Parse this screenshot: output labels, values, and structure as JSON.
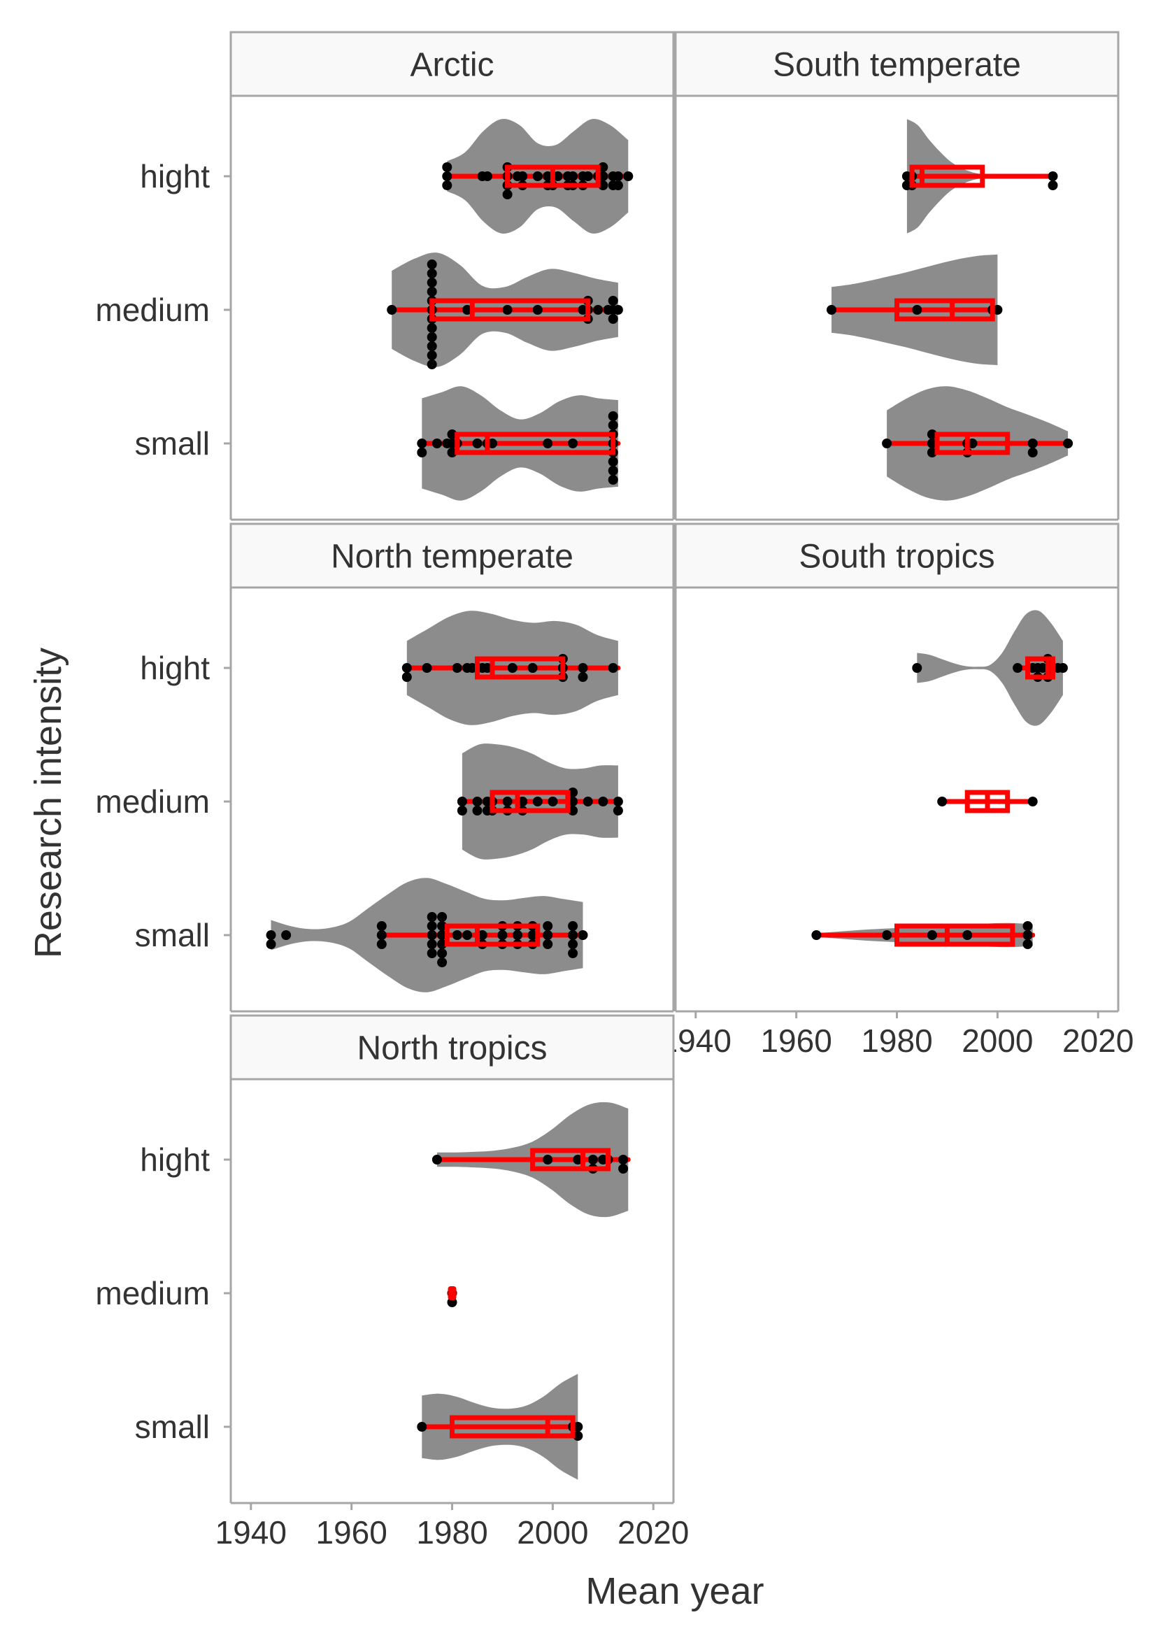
{
  "chart_data": {
    "type": "violin",
    "xlabel": "Mean year",
    "ylabel": "Research intensity",
    "categories": [
      "hight",
      "medium",
      "small"
    ],
    "xlim": [
      1936,
      2024
    ],
    "xticks": [
      1940,
      1960,
      1980,
      2000,
      2020
    ],
    "colors": {
      "violin": "#8c8c8c",
      "box": "#ff0000",
      "points": "#000000"
    },
    "panels": [
      {
        "name": "Arctic",
        "groups": [
          {
            "category": "hight",
            "points": [
              1979,
              1979,
              1979,
              1986,
              1987,
              1991,
              1991,
              1991,
              1991,
              1993,
              1994,
              1994,
              1997,
              1999,
              1999,
              2000,
              2000,
              2001,
              2003,
              2003,
              2004,
              2004,
              2006,
              2006,
              2007,
              2009,
              2010,
              2010,
              2010,
              2012,
              2012,
              2013,
              2013,
              2015
            ],
            "box": {
              "min": 1979,
              "q1": 1991,
              "median": 2000,
              "q3": 2009,
              "max": 2015
            },
            "violin": {
              "ymin": 1979,
              "ymax": 2015,
              "widths": [
                0.25,
                0.4,
                0.75,
                0.95,
                0.85,
                0.55,
                0.52,
                0.75,
                0.95,
                0.85,
                0.6
              ]
            }
          },
          {
            "category": "medium",
            "points": [
              1968,
              1976,
              1976,
              1976,
              1976,
              1976,
              1976,
              1976,
              1976,
              1976,
              1976,
              1976,
              1976,
              1983,
              1991,
              1997,
              2006,
              2007,
              2007,
              2007,
              2009,
              2011,
              2012,
              2012,
              2012,
              2013
            ],
            "box": {
              "min": 1968,
              "q1": 1976,
              "median": 1984,
              "q3": 2007,
              "max": 2013
            },
            "violin": {
              "ymin": 1968,
              "ymax": 2013,
              "widths": [
                0.65,
                0.85,
                0.95,
                0.75,
                0.4,
                0.38,
                0.55,
                0.68,
                0.62,
                0.52,
                0.45
              ]
            }
          },
          {
            "category": "small",
            "points": [
              1974,
              1974,
              1977,
              1979,
              1980,
              1980,
              1980,
              1981,
              1985,
              1987,
              1988,
              1999,
              2004,
              2012,
              2012,
              2012,
              2012,
              2012,
              2012,
              2012,
              2012
            ],
            "box": {
              "min": 1974,
              "q1": 1981,
              "median": 1987,
              "q3": 2012,
              "max": 2013
            },
            "violin": {
              "ymin": 1974,
              "ymax": 2013,
              "widths": [
                0.75,
                0.85,
                0.95,
                0.8,
                0.55,
                0.4,
                0.5,
                0.7,
                0.8,
                0.75,
                0.72
              ]
            }
          }
        ]
      },
      {
        "name": "South temperate",
        "groups": [
          {
            "category": "hight",
            "points": [
              1982,
              1982,
              1983,
              1983,
              2011,
              2011
            ],
            "box": {
              "min": 1982,
              "q1": 1983,
              "median": 1985,
              "q3": 1997,
              "max": 2011
            },
            "violin": {
              "ymin": 1982,
              "ymax": 1997,
              "widths": [
                0.95,
                0.85,
                0.62,
                0.42,
                0.25,
                0.14,
                0.07,
                0.03
              ]
            }
          },
          {
            "category": "medium",
            "points": [
              1967,
              1984,
              1999,
              2000
            ],
            "box": {
              "min": 1967,
              "q1": 1980,
              "median": 1991,
              "q3": 1999,
              "max": 2000
            },
            "violin": {
              "ymin": 1967,
              "ymax": 2000,
              "widths": [
                0.38,
                0.42,
                0.48,
                0.55,
                0.62,
                0.7,
                0.78,
                0.85,
                0.9,
                0.92
              ]
            }
          },
          {
            "category": "small",
            "points": [
              1978,
              1987,
              1987,
              1987,
              1994,
              1994,
              1995,
              2007,
              2007,
              2014
            ],
            "box": {
              "min": 1978,
              "q1": 1988,
              "median": 1994,
              "q3": 2002,
              "max": 2014
            },
            "violin": {
              "ymin": 1978,
              "ymax": 2014,
              "widths": [
                0.55,
                0.75,
                0.9,
                0.95,
                0.88,
                0.75,
                0.6,
                0.48,
                0.35,
                0.2
              ]
            }
          }
        ]
      },
      {
        "name": "North temperate",
        "groups": [
          {
            "category": "hight",
            "points": [
              1971,
              1971,
              1975,
              1981,
              1983,
              1984,
              1985,
              1986,
              1987,
              1992,
              1996,
              2002,
              2002,
              2002,
              2006,
              2006,
              2012
            ],
            "box": {
              "min": 1971,
              "q1": 1985,
              "median": 1988,
              "q3": 2002,
              "max": 2013
            },
            "violin": {
              "ymin": 1971,
              "ymax": 2013,
              "widths": [
                0.45,
                0.65,
                0.85,
                0.95,
                0.9,
                0.8,
                0.75,
                0.78,
                0.72,
                0.55,
                0.45
              ]
            }
          },
          {
            "category": "medium",
            "points": [
              1982,
              1982,
              1985,
              1985,
              1987,
              1987,
              1988,
              1988,
              1991,
              1991,
              1994,
              1994,
              1997,
              2000,
              2004,
              2004,
              2004,
              2007,
              2010,
              2013,
              2013
            ],
            "box": {
              "min": 1982,
              "q1": 1988,
              "median": 1993,
              "q3": 2003,
              "max": 2013
            },
            "violin": {
              "ymin": 1982,
              "ymax": 2013,
              "widths": [
                0.8,
                0.95,
                0.95,
                0.9,
                0.8,
                0.65,
                0.55,
                0.55,
                0.6,
                0.6
              ]
            }
          },
          {
            "category": "small",
            "points": [
              1944,
              1944,
              1947,
              1966,
              1966,
              1966,
              1976,
              1976,
              1976,
              1976,
              1976,
              1978,
              1978,
              1978,
              1978,
              1978,
              1978,
              1981,
              1983,
              1986,
              1986,
              1990,
              1990,
              1990,
              1993,
              1993,
              1993,
              1996,
              1996,
              1996,
              1999,
              1999,
              1999,
              2004,
              2004,
              2004,
              2004,
              2006
            ],
            "box": {
              "min": 1966,
              "q1": 1979,
              "median": 1985,
              "q3": 1997,
              "max": 2006
            },
            "violin": {
              "ymin": 1944,
              "ymax": 2006,
              "widths": [
                0.25,
                0.15,
                0.1,
                0.12,
                0.22,
                0.45,
                0.68,
                0.88,
                0.95,
                0.85,
                0.72,
                0.6,
                0.58,
                0.62,
                0.65,
                0.6,
                0.55
              ]
            }
          }
        ]
      },
      {
        "name": "South tropics",
        "groups": [
          {
            "category": "hight",
            "points": [
              1984,
              2004,
              2007,
              2008,
              2008,
              2009,
              2010,
              2010,
              2010,
              2011,
              2012,
              2013
            ],
            "box": {
              "min": 2004,
              "q1": 2006,
              "median": 2010,
              "q3": 2011,
              "max": 2013
            },
            "violin": {
              "ymin": 1984,
              "ymax": 2013,
              "widths": [
                0.25,
                0.22,
                0.15,
                0.08,
                0.03,
                0.02,
                0.05,
                0.25,
                0.6,
                0.9,
                0.95,
                0.75,
                0.45
              ]
            }
          },
          {
            "category": "medium",
            "points": [
              1989,
              2007
            ],
            "box": {
              "min": 1989,
              "q1": 1994,
              "median": 1998,
              "q3": 2002,
              "max": 2007
            },
            "violin": {
              "ymin": 1989,
              "ymax": 2007,
              "widths": []
            }
          },
          {
            "category": "small",
            "points": [
              1964,
              1978,
              1987,
              1994,
              2006,
              2006,
              2006
            ],
            "box": {
              "min": 1964,
              "q1": 1980,
              "median": 1990,
              "q3": 2003,
              "max": 2007
            },
            "violin": {
              "ymin": 1964,
              "ymax": 2007,
              "widths": [
                0.03,
                0.06,
                0.09,
                0.11,
                0.13,
                0.15,
                0.17,
                0.19,
                0.2,
                0.18
              ]
            }
          }
        ]
      },
      {
        "name": "North tropics",
        "groups": [
          {
            "category": "hight",
            "points": [
              1977,
              1999,
              2005,
              2008,
              2008,
              2010,
              2011,
              2014,
              2014
            ],
            "box": {
              "min": 1977,
              "q1": 1996,
              "median": 2006,
              "q3": 2011,
              "max": 2015
            },
            "violin": {
              "ymin": 1977,
              "ymax": 2015,
              "widths": [
                0.12,
                0.12,
                0.13,
                0.15,
                0.2,
                0.3,
                0.5,
                0.75,
                0.92,
                0.95,
                0.85
              ]
            }
          },
          {
            "category": "medium",
            "points": [
              1980,
              1980
            ],
            "box": {
              "min": 1980,
              "q1": 1980,
              "median": 1980,
              "q3": 1980,
              "max": 1980
            },
            "violin": {
              "ymin": 1980,
              "ymax": 1980,
              "widths": []
            }
          },
          {
            "category": "small",
            "points": [
              1974,
              2004,
              2005,
              2005
            ],
            "box": {
              "min": 1974,
              "q1": 1980,
              "median": 1999,
              "q3": 2004,
              "max": 2005
            },
            "violin": {
              "ymin": 1974,
              "ymax": 2005,
              "widths": [
                0.52,
                0.55,
                0.5,
                0.4,
                0.32,
                0.3,
                0.35,
                0.5,
                0.72,
                0.88
              ]
            }
          }
        ]
      }
    ]
  }
}
